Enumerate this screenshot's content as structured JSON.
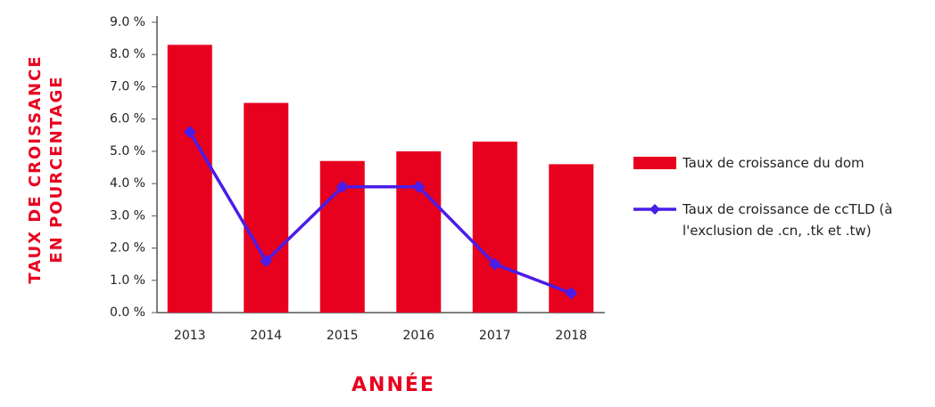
{
  "chart_data": {
    "type": "bar_line",
    "y_label": [
      "TAUX DE CROISSANCE",
      "EN POURCENTAGE"
    ],
    "x_label": "ANNÉE",
    "categories": [
      "2013",
      "2014",
      "2015",
      "2016",
      "2017",
      "2018"
    ],
    "series": [
      {
        "name": "Taux de croissance du dom",
        "type": "bar",
        "color": "#e8001f",
        "values": [
          8.3,
          6.5,
          4.7,
          5.0,
          5.3,
          4.6
        ]
      },
      {
        "name": "Taux de croissance de ccTLD (à l'exclusion de .cn, .tk et .tw)",
        "type": "line",
        "color": "#4a1de8",
        "values": [
          5.6,
          1.6,
          3.9,
          3.9,
          1.5,
          0.6
        ]
      }
    ],
    "ylim": [
      0,
      9
    ],
    "yticks": [
      {
        "value": 0,
        "label": "0.0 %"
      },
      {
        "value": 1,
        "label": "1.0 %"
      },
      {
        "value": 2,
        "label": "2.0 %"
      },
      {
        "value": 3,
        "label": "3.0 %"
      },
      {
        "value": 4,
        "label": "4.0 %"
      },
      {
        "value": 5,
        "label": "5.0 %"
      },
      {
        "value": 6,
        "label": "6.0 %"
      },
      {
        "value": 7,
        "label": "7.0 %"
      },
      {
        "value": 8,
        "label": "8.0 %"
      },
      {
        "value": 9,
        "label": "9.0 %"
      }
    ]
  }
}
